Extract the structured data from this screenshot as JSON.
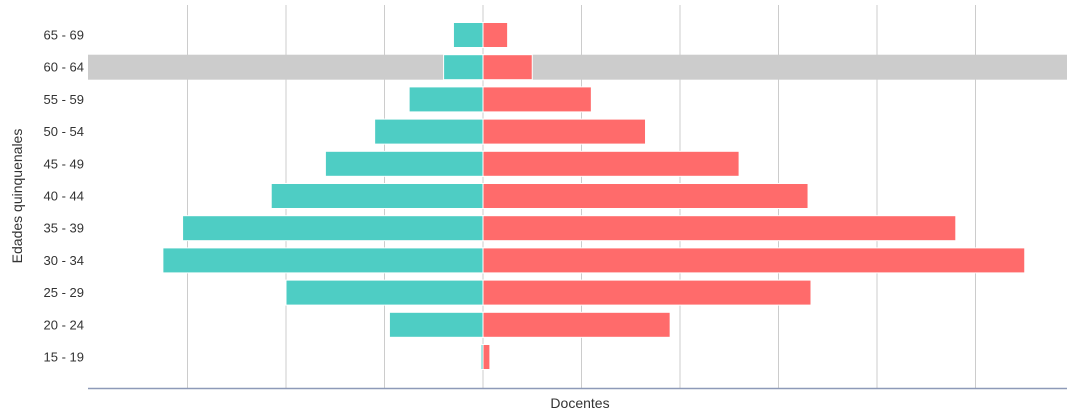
{
  "chart_data": {
    "type": "bar",
    "orientation": "horizontal",
    "layout": "population-pyramid",
    "xlabel": "Docentes",
    "ylabel": "Edades quinquenales",
    "categories": [
      "65 - 69",
      "60 - 64",
      "55 - 59",
      "50 - 54",
      "45 - 49",
      "40 - 44",
      "35 - 39",
      "30 - 34",
      "25 - 29",
      "20 - 24",
      "15 - 19"
    ],
    "x_ticks": [
      -30,
      -20,
      -10,
      0,
      10,
      20,
      30,
      40,
      50
    ],
    "xlim": [
      -40,
      59
    ],
    "grid": true,
    "highlighted_category": "60 - 64",
    "series": [
      {
        "side": "left",
        "color": "#4ecdc4",
        "values": [
          3,
          4,
          7.5,
          11,
          16,
          21.5,
          30.5,
          32.5,
          20,
          9.5,
          0.2
        ]
      },
      {
        "side": "right",
        "color": "#ff6b6b",
        "values": [
          2.5,
          5,
          11,
          16.5,
          26,
          33,
          48,
          55,
          33.3,
          19,
          0.7
        ]
      }
    ],
    "highlight_color": "#cccccc",
    "grid_color": "#cccccc",
    "axis_color": "#8e9ab8"
  }
}
